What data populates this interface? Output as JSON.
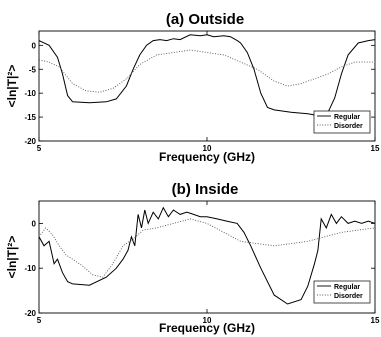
{
  "chart_data": [
    {
      "type": "line",
      "title": "(a) Outside",
      "xlabel": "Frequency (GHz)",
      "ylabel": "<ln|T|²>",
      "xlim": [
        5,
        15
      ],
      "ylim": [
        -20,
        3
      ],
      "xticks": [
        "5",
        "10",
        "15"
      ],
      "yticks": [
        "0",
        "-5",
        "-10",
        "-15",
        "-20"
      ],
      "legend": {
        "placement": "bottom-right",
        "entries": [
          "Regular",
          "Disorder"
        ]
      },
      "series": [
        {
          "name": "Regular",
          "style": "solid",
          "x": [
            5.0,
            5.3,
            5.55,
            5.7,
            5.85,
            6.0,
            6.5,
            7.0,
            7.3,
            7.6,
            7.8,
            8.0,
            8.2,
            8.4,
            8.6,
            8.8,
            9.0,
            9.2,
            9.5,
            9.8,
            10.0,
            10.2,
            10.5,
            10.7,
            10.9,
            11.0,
            11.2,
            11.4,
            11.6,
            11.8,
            12.0,
            12.5,
            13.0,
            13.4,
            13.6,
            13.8,
            14.0,
            14.2,
            14.5,
            14.8,
            15.0
          ],
          "y": [
            1.0,
            0.0,
            -2.5,
            -6.0,
            -10.5,
            -11.8,
            -12.0,
            -11.8,
            -11.2,
            -8.5,
            -5.0,
            -2.0,
            0.0,
            1.0,
            1.2,
            1.0,
            1.4,
            1.2,
            2.2,
            2.0,
            2.2,
            1.8,
            2.0,
            1.8,
            1.0,
            0.5,
            -1.5,
            -5.0,
            -10.0,
            -13.0,
            -13.5,
            -14.0,
            -14.3,
            -14.8,
            -14.0,
            -11.0,
            -6.0,
            -2.0,
            0.5,
            1.0,
            1.2
          ]
        },
        {
          "name": "Disorder",
          "style": "dotted",
          "x": [
            5.0,
            5.3,
            5.6,
            6.0,
            6.4,
            6.8,
            7.2,
            7.6,
            8.0,
            8.5,
            9.0,
            9.5,
            10.0,
            10.5,
            11.0,
            11.5,
            12.0,
            12.4,
            12.8,
            13.2,
            13.6,
            14.0,
            14.4,
            14.8,
            15.0
          ],
          "y": [
            -3.0,
            -3.5,
            -4.5,
            -8.0,
            -9.5,
            -9.8,
            -9.0,
            -7.0,
            -4.0,
            -2.0,
            -1.5,
            -1.0,
            -1.5,
            -2.0,
            -3.5,
            -5.0,
            -7.5,
            -8.5,
            -8.0,
            -7.0,
            -6.0,
            -4.5,
            -3.5,
            -3.5,
            -3.5
          ]
        }
      ]
    },
    {
      "type": "line",
      "title": "(b) Inside",
      "xlabel": "Frequency (GHz)",
      "ylabel": "<ln|T|²>",
      "xlim": [
        5,
        15
      ],
      "ylim": [
        -20,
        5
      ],
      "xticks": [
        "5",
        "10",
        "15"
      ],
      "yticks": [
        "0",
        "-10",
        "-20"
      ],
      "legend": {
        "placement": "bottom-right",
        "entries": [
          "Regular",
          "Disorder"
        ]
      },
      "series": [
        {
          "name": "Regular",
          "style": "solid",
          "x": [
            5.0,
            5.15,
            5.3,
            5.45,
            5.55,
            5.7,
            5.85,
            6.0,
            6.5,
            7.0,
            7.3,
            7.5,
            7.65,
            7.75,
            7.85,
            7.95,
            8.05,
            8.15,
            8.25,
            8.4,
            8.55,
            8.7,
            8.85,
            9.0,
            9.2,
            9.4,
            9.6,
            9.8,
            10.0,
            10.3,
            10.6,
            10.9,
            11.1,
            11.3,
            11.6,
            12.0,
            12.4,
            12.8,
            13.0,
            13.2,
            13.3,
            13.4,
            13.55,
            13.7,
            13.85,
            14.0,
            14.2,
            14.4,
            14.6,
            14.8,
            15.0
          ],
          "y": [
            -3.0,
            -5.0,
            -4.0,
            -9.0,
            -8.0,
            -11.0,
            -13.0,
            -13.5,
            -13.8,
            -12.0,
            -10.0,
            -8.0,
            -6.0,
            -3.0,
            -5.0,
            2.0,
            -1.0,
            3.0,
            0.0,
            2.5,
            1.0,
            3.5,
            1.5,
            3.0,
            2.0,
            2.5,
            2.0,
            1.5,
            1.5,
            1.0,
            0.5,
            0.0,
            -2.0,
            -5.0,
            -10.0,
            -16.0,
            -18.0,
            -17.0,
            -14.0,
            -9.0,
            -6.0,
            1.0,
            -1.0,
            2.0,
            0.0,
            1.5,
            0.0,
            0.5,
            0.0,
            0.5,
            0.0
          ]
        },
        {
          "name": "Disorder",
          "style": "dotted",
          "x": [
            5.0,
            5.2,
            5.4,
            5.6,
            5.8,
            6.0,
            6.3,
            6.6,
            6.9,
            7.2,
            7.5,
            7.8,
            8.1,
            8.5,
            9.0,
            9.5,
            10.0,
            10.5,
            11.0,
            11.5,
            12.0,
            12.5,
            13.0,
            13.5,
            14.0,
            14.5,
            15.0
          ],
          "y": [
            -3.0,
            -1.0,
            -2.5,
            -5.0,
            -7.0,
            -8.0,
            -9.5,
            -11.5,
            -12.0,
            -9.0,
            -5.0,
            -3.5,
            -1.5,
            -1.0,
            0.0,
            1.0,
            0.0,
            -2.0,
            -4.0,
            -4.5,
            -5.0,
            -4.5,
            -4.0,
            -3.0,
            -2.0,
            -1.5,
            -1.0
          ]
        }
      ]
    }
  ]
}
